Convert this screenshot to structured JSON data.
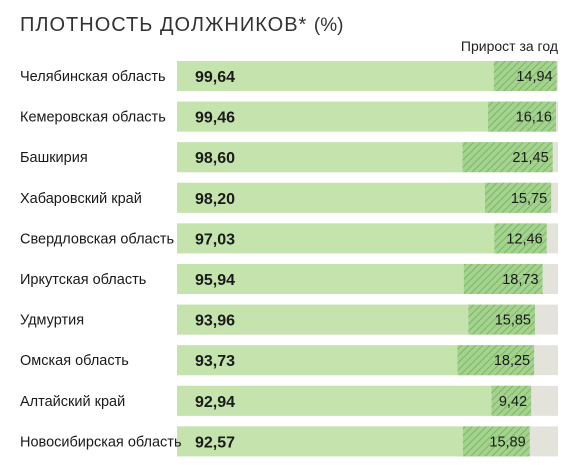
{
  "chart_data": {
    "type": "bar",
    "title": "ПЛОТНОСТЬ ДОЛЖНИКОВ*",
    "title_unit": "(%)",
    "growth_header": "Прирост за год",
    "xlim": [
      0,
      100
    ],
    "categories": [
      "Челябинская область",
      "Кемеровская область",
      "Башкирия",
      "Хабаровский край",
      "Свердловская область",
      "Иркутская область",
      "Удмуртия",
      "Омская область",
      "Алтайский край",
      "Новосибирская область"
    ],
    "values": [
      99.64,
      99.46,
      98.6,
      98.2,
      97.03,
      95.94,
      93.96,
      93.73,
      92.94,
      92.57
    ],
    "value_labels": [
      "99,64",
      "99,46",
      "98,60",
      "98,20",
      "97,03",
      "95,94",
      "93,96",
      "93,73",
      "92,94",
      "92,57"
    ],
    "growth": [
      14.94,
      16.16,
      21.45,
      15.75,
      12.46,
      18.73,
      15.85,
      18.25,
      9.42,
      15.89
    ],
    "growth_labels": [
      "14,94",
      "16,16",
      "21,45",
      "15,75",
      "12,46",
      "18,73",
      "15,85",
      "18,25",
      "9,42",
      "15,89"
    ],
    "colors": {
      "bar": "#c4e3ad",
      "growth": "#9bcf82",
      "growth_stripe": "#6db35a",
      "remainder": "#e3e3dc"
    }
  }
}
